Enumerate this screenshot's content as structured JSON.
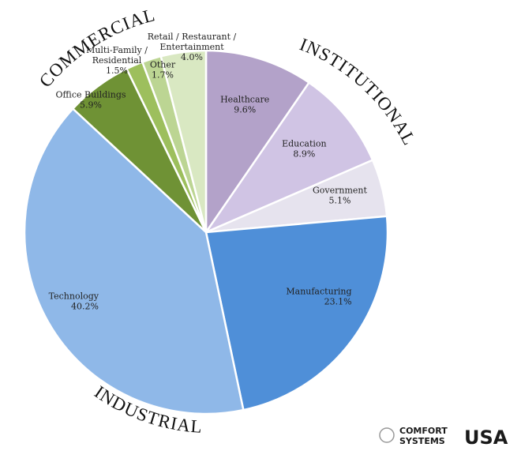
{
  "chart_data": {
    "type": "pie",
    "slices": [
      {
        "label_lines": [
          "Healthcare"
        ],
        "value_text": "9.6%",
        "value": 9.6,
        "color": "#b3a2c9"
      },
      {
        "label_lines": [
          "Education"
        ],
        "value_text": "8.9%",
        "value": 8.9,
        "color": "#d0c4e4"
      },
      {
        "label_lines": [
          "Government"
        ],
        "value_text": "5.1%",
        "value": 5.1,
        "color": "#e6e3ee"
      },
      {
        "label_lines": [
          "Manufacturing"
        ],
        "value_text": "23.1%",
        "value": 23.1,
        "color": "#4f8fd8"
      },
      {
        "label_lines": [
          "Technology"
        ],
        "value_text": "40.2%",
        "value": 40.2,
        "color": "#8fb8e8"
      },
      {
        "label_lines": [
          "Office Buildings"
        ],
        "value_text": "5.9%",
        "value": 5.9,
        "color": "#6f9235"
      },
      {
        "label_lines": [
          "Multi-Family /",
          "Residential"
        ],
        "value_text": "1.5%",
        "value": 1.5,
        "color": "#9dbf5d"
      },
      {
        "label_lines": [
          "Other"
        ],
        "value_text": "1.7%",
        "value": 1.7,
        "color": "#bcd593"
      },
      {
        "label_lines": [
          "Retail / Restaurant /",
          "Entertainment"
        ],
        "value_text": "4.0%",
        "value": 4.0,
        "color": "#d9e8c2"
      }
    ],
    "groups": [
      "COMMERCIAL",
      "INSTITUTIONAL",
      "INDUSTRIAL"
    ]
  },
  "logo": {
    "line1": "COMFORT",
    "line2": "SYSTEMS",
    "brand": "USA",
    "accent": "#c8102e",
    "blue": "#1f4e9c"
  }
}
